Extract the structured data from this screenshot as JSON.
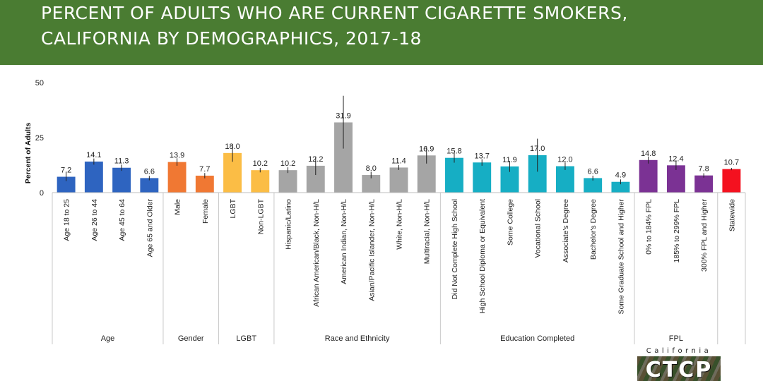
{
  "title": {
    "line1": "PERCENT OF ADULTS WHO ARE CURRENT CIGARETTE SMOKERS,",
    "line2": "CALIFORNIA BY DEMOGRAPHICS, 2017-18"
  },
  "logo": {
    "top_text": "California",
    "main_text": "CTCP"
  },
  "chart_data": {
    "type": "bar",
    "title": "PERCENT OF ADULTS WHO ARE CURRENT CIGARETTE SMOKERS, CALIFORNIA BY DEMOGRAPHICS, 2017-18",
    "ylabel": "Percent of Adults",
    "xlabel": "",
    "ylim": [
      0,
      50
    ],
    "yticks": [
      0,
      25,
      50
    ],
    "grid": false,
    "legend": "none",
    "error_bars": true,
    "groups": [
      {
        "name": "Age",
        "color": "#2e64c0",
        "categories": [
          {
            "label": "Age 18 to 25",
            "value": 7.2,
            "ci": [
              5.2,
              9.2
            ]
          },
          {
            "label": "Age 26 to 44",
            "value": 14.1,
            "ci": [
              12.7,
              15.5
            ]
          },
          {
            "label": "Age 45 to 64",
            "value": 11.3,
            "ci": [
              9.9,
              12.7
            ]
          },
          {
            "label": "Age 65 and Older",
            "value": 6.6,
            "ci": [
              5.6,
              7.6
            ]
          }
        ]
      },
      {
        "name": "Gender",
        "color": "#f07833",
        "categories": [
          {
            "label": "Male",
            "value": 13.9,
            "ci": [
              12.2,
              15.6
            ]
          },
          {
            "label": "Female",
            "value": 7.7,
            "ci": [
              6.5,
              8.9
            ]
          }
        ]
      },
      {
        "name": "LGBT",
        "color": "#fbbd45",
        "categories": [
          {
            "label": "LGBT",
            "value": 18.0,
            "ci": [
              14.0,
              22.0
            ]
          },
          {
            "label": "Non-LGBT",
            "value": 10.2,
            "ci": [
              9.2,
              11.2
            ]
          }
        ]
      },
      {
        "name": "Race and Ethnicity",
        "color": "#a5a5a5",
        "categories": [
          {
            "label": "Hispanic/Latino",
            "value": 10.2,
            "ci": [
              8.9,
              11.5
            ]
          },
          {
            "label": "African American/Black, Non-H/L",
            "value": 12.2,
            "ci": [
              8.0,
              16.4
            ]
          },
          {
            "label": "American Indian, Non-H/L",
            "value": 31.9,
            "ci": [
              20.0,
              44.0
            ]
          },
          {
            "label": "Asian/Pacific Islander, Non-H/L",
            "value": 8.0,
            "ci": [
              6.5,
              9.5
            ]
          },
          {
            "label": "White, Non-H/L",
            "value": 11.4,
            "ci": [
              10.3,
              12.5
            ]
          },
          {
            "label": "Multiracial, Non-H/L",
            "value": 16.9,
            "ci": [
              13.2,
              20.6
            ]
          }
        ]
      },
      {
        "name": "Education Completed",
        "color": "#16aec4",
        "categories": [
          {
            "label": "Did Not Complete High School",
            "value": 15.8,
            "ci": [
              13.6,
              18.0
            ]
          },
          {
            "label": "High School Diploma or Equivalent",
            "value": 13.7,
            "ci": [
              12.2,
              15.2
            ]
          },
          {
            "label": "Some College",
            "value": 11.9,
            "ci": [
              9.4,
              14.4
            ]
          },
          {
            "label": "Vocational School",
            "value": 17.0,
            "ci": [
              9.5,
              24.5
            ]
          },
          {
            "label": "Associate's Degree",
            "value": 12.0,
            "ci": [
              10.3,
              13.7
            ]
          },
          {
            "label": "Bachelor's Degree",
            "value": 6.6,
            "ci": [
              5.5,
              7.7
            ]
          },
          {
            "label": "Some Graduate School and Higher",
            "value": 4.9,
            "ci": [
              3.8,
              6.0
            ]
          }
        ]
      },
      {
        "name": "FPL",
        "color": "#7b3294",
        "categories": [
          {
            "label": "0% to 184% FPL",
            "value": 14.8,
            "ci": [
              13.2,
              16.4
            ]
          },
          {
            "label": "185% to 299% FPL",
            "value": 12.4,
            "ci": [
              10.3,
              14.5
            ]
          },
          {
            "label": "300% FPL and Higher",
            "value": 7.8,
            "ci": [
              6.8,
              8.8
            ]
          }
        ]
      },
      {
        "name": "",
        "color": "#f4111f",
        "categories": [
          {
            "label": "Statewide",
            "value": 10.7,
            "ci": [
              10.2,
              11.2
            ]
          }
        ]
      }
    ]
  }
}
